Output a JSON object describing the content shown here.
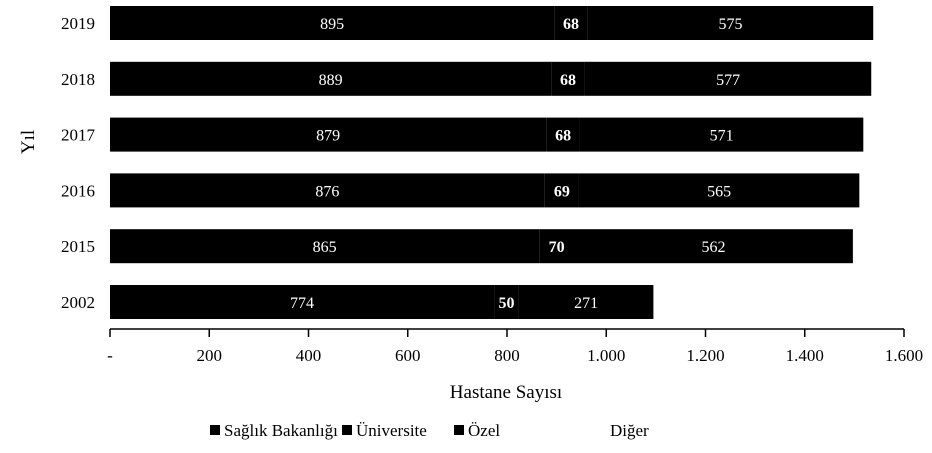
{
  "chart_data": {
    "type": "bar",
    "orientation": "horizontal",
    "stacked": true,
    "title": "",
    "xlabel": "Hastane Sayısı",
    "ylabel": "Yıl",
    "categories": [
      "2019",
      "2018",
      "2017",
      "2016",
      "2015",
      "2002"
    ],
    "xlim": [
      0,
      1600
    ],
    "xticks": [
      "-",
      "200",
      "400",
      "600",
      "800",
      "1.000",
      "1.200",
      "1.400",
      "1.600"
    ],
    "grid": false,
    "legend_position": "bottom",
    "series": [
      {
        "name": "Sağlık Bakanlığı",
        "values": [
          895,
          889,
          879,
          876,
          865,
          774
        ],
        "label_color": "#ffffff"
      },
      {
        "name": "Üniversite",
        "values": [
          68,
          68,
          68,
          69,
          70,
          50
        ],
        "label_color": "#ffffff"
      },
      {
        "name": "Özel",
        "values": [
          575,
          577,
          571,
          565,
          562,
          271
        ],
        "label_color": "#ffffff"
      },
      {
        "name": "Diğer",
        "values": [
          0,
          0,
          0,
          0,
          0,
          0
        ],
        "label_color": "#ffffff"
      }
    ],
    "colors": {
      "bar": "#000000",
      "background": "#ffffff"
    }
  }
}
